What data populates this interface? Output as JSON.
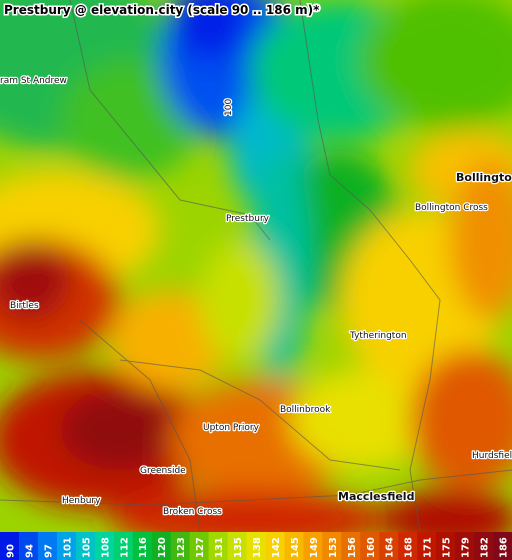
{
  "title": "Prestbury @ elevation.city (scale 90 .. 186 m)*",
  "places": [
    {
      "name": "ram St Andrew",
      "bold": false
    },
    {
      "name": "100",
      "bold": false
    },
    {
      "name": "Bollingto",
      "bold": true
    },
    {
      "name": "Bollington Cross",
      "bold": false
    },
    {
      "name": "Prestbury",
      "bold": false
    },
    {
      "name": "Birtles",
      "bold": false
    },
    {
      "name": "Tytherington",
      "bold": false
    },
    {
      "name": "Bollinbrook",
      "bold": false
    },
    {
      "name": "Upton Priory",
      "bold": false
    },
    {
      "name": "Hurdsfield",
      "bold": false
    },
    {
      "name": "Greenside",
      "bold": false
    },
    {
      "name": "Henbury",
      "bold": false
    },
    {
      "name": "Broken Cross",
      "bold": false
    },
    {
      "name": "Macclesfield",
      "bold": true
    }
  ],
  "legend": {
    "values": [
      90,
      94,
      97,
      101,
      105,
      108,
      112,
      116,
      120,
      123,
      127,
      131,
      135,
      138,
      142,
      145,
      149,
      153,
      156,
      160,
      164,
      168,
      171,
      175,
      179,
      182,
      186
    ],
    "colors": [
      "#0019e6",
      "#0049ee",
      "#0079f2",
      "#00a3e8",
      "#00c2c8",
      "#00d4a0",
      "#00d070",
      "#00c040",
      "#10b020",
      "#40b810",
      "#70c800",
      "#a0d800",
      "#c8e000",
      "#e8e000",
      "#f8d000",
      "#f8b800",
      "#f8a000",
      "#f08800",
      "#e87000",
      "#e05800",
      "#d84000",
      "#d02800",
      "#c01800",
      "#b01000",
      "#a00c08",
      "#900a10",
      "#800818"
    ]
  }
}
